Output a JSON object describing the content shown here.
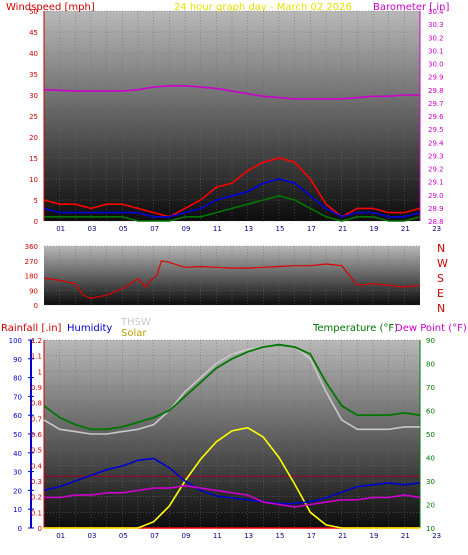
{
  "titles": {
    "windspeed": "Windspeed [mph]",
    "center": "24 hour graph day - March 02 2026",
    "barometer": "Barometer [.in]",
    "rainfall": "Rainfall [.in]",
    "humidity": "Humidity",
    "thsw": "THSW",
    "solar": "Solar",
    "temperature": "Temperature (°F)",
    "dewpoint": "Dew Point (°F)"
  },
  "colors": {
    "windspeed": "#cc0000",
    "center": "#e8e000",
    "barometer": "#cc00cc",
    "rainfall": "#cc0000",
    "humidity": "#0000cc",
    "thsw": "#c8c8c8",
    "solar": "#b8a000",
    "temperature": "#007700",
    "dewpoint": "#cc00cc",
    "wind_gust": "#ff0000",
    "wind_avg": "#0000dd",
    "wind_low": "#007700",
    "wind_dir": "#dd0000",
    "solar_line": "#ffff00"
  },
  "chart_data": [
    {
      "type": "line",
      "x_tick_labels": [
        "01",
        "03",
        "05",
        "07",
        "09",
        "11",
        "13",
        "15",
        "17",
        "21",
        "19",
        "21",
        "23"
      ],
      "y_left": {
        "label": "Windspeed [mph]",
        "ticks": [
          0,
          5,
          10,
          15,
          20,
          25,
          30,
          35,
          40,
          45,
          50
        ],
        "ylim": [
          0,
          50
        ]
      },
      "y_right": {
        "label": "Barometer [.in]",
        "ticks": [
          28.8,
          28.9,
          29.0,
          29.1,
          29.2,
          29.3,
          29.4,
          29.5,
          29.6,
          29.7,
          29.8,
          29.9,
          30.0,
          30.1,
          30.2,
          30.3,
          30.4
        ],
        "ylim": [
          28.8,
          30.4
        ]
      },
      "series": [
        {
          "name": "Barometer",
          "axis": "right",
          "x": [
            0,
            2,
            4,
            5,
            6,
            7,
            8,
            9,
            10,
            11,
            12,
            13,
            14,
            15,
            16,
            17,
            18,
            19,
            20,
            21,
            22,
            23,
            24
          ],
          "values": [
            29.8,
            29.79,
            29.79,
            29.79,
            29.8,
            29.82,
            29.83,
            29.83,
            29.82,
            29.81,
            29.79,
            29.77,
            29.75,
            29.74,
            29.73,
            29.73,
            29.73,
            29.73,
            29.74,
            29.75,
            29.75,
            29.76,
            29.76
          ]
        },
        {
          "axis": "left",
          "x": [
            0,
            1,
            2,
            3,
            4,
            5,
            6,
            7,
            8,
            9,
            10,
            11,
            12,
            13,
            14,
            15,
            16,
            17,
            18,
            19,
            20,
            21,
            22,
            23,
            24
          ],
          "values": [
            5,
            4,
            4,
            3,
            4,
            4,
            3,
            2,
            1,
            3,
            5,
            8,
            9,
            12,
            14,
            15,
            14,
            10,
            4,
            1,
            3,
            3,
            2,
            2,
            3
          ]
        },
        {
          "axis": "left",
          "x": [
            0,
            1,
            2,
            3,
            4,
            5,
            6,
            7,
            8,
            9,
            10,
            11,
            12,
            13,
            14,
            15,
            16,
            17,
            18,
            19,
            20,
            21,
            22,
            23,
            24
          ],
          "values": [
            3,
            2,
            2,
            2,
            2,
            2,
            2,
            1,
            1,
            2,
            3,
            5,
            6,
            7,
            9,
            10,
            9,
            6,
            3,
            1,
            2,
            2,
            1,
            1,
            2
          ]
        },
        {
          "axis": "left",
          "x": [
            0,
            1,
            2,
            3,
            4,
            5,
            6,
            7,
            8,
            9,
            10,
            11,
            12,
            13,
            14,
            15,
            16,
            17,
            18,
            19,
            20,
            21,
            22,
            23,
            24
          ],
          "values": [
            1,
            1,
            1,
            1,
            1,
            1,
            0,
            0,
            0,
            1,
            1,
            2,
            3,
            4,
            5,
            6,
            5,
            3,
            1,
            0,
            1,
            1,
            0,
            0,
            1
          ]
        }
      ]
    },
    {
      "type": "line",
      "x_tick_labels": [],
      "y_left": {
        "ticks": [
          0,
          90,
          180,
          270,
          360
        ],
        "ylim": [
          0,
          360
        ]
      },
      "y_right_labels": [
        "N",
        "W",
        "S",
        "E",
        "N"
      ],
      "series": [
        {
          "name": "Wind Direction",
          "x": [
            0,
            1,
            2,
            2.5,
            3,
            4,
            5,
            5.5,
            6,
            6.5,
            6.8,
            7.2,
            7.5,
            8,
            9,
            10,
            11,
            12,
            13,
            14,
            15,
            16,
            17,
            18,
            19,
            20,
            21,
            22,
            23,
            24
          ],
          "values": [
            165,
            150,
            130,
            60,
            40,
            60,
            100,
            130,
            160,
            110,
            150,
            180,
            270,
            260,
            230,
            235,
            230,
            225,
            225,
            230,
            235,
            240,
            240,
            250,
            240,
            120,
            130,
            120,
            110,
            120
          ]
        }
      ]
    },
    {
      "type": "line",
      "x_tick_labels": [
        "01",
        "03",
        "05",
        "07",
        "09",
        "11",
        "13",
        "15",
        "17",
        "21",
        "19",
        "21",
        "23"
      ],
      "y_left_rain": {
        "label": "Rainfall [.in]",
        "ticks": [
          0,
          0.1,
          0.2,
          0.3,
          0.4,
          0.5,
          0.6,
          0.7,
          0.8,
          0.9,
          1.0,
          1.1,
          1.2
        ],
        "ylim": [
          0,
          1.2
        ]
      },
      "y_left_humidity": {
        "label": "Humidity",
        "ticks": [
          0,
          10,
          20,
          30,
          40,
          50,
          60,
          70,
          80,
          90,
          100
        ],
        "ylim": [
          0,
          100
        ]
      },
      "y_right": {
        "label": "Temperature (°F)",
        "ticks": [
          10,
          20,
          30,
          40,
          50,
          60,
          70,
          80,
          90
        ],
        "ylim": [
          10,
          90
        ]
      },
      "series": [
        {
          "name": "Temperature",
          "axis": "right",
          "x": [
            0,
            1,
            2,
            3,
            4,
            5,
            6,
            7,
            8,
            9,
            10,
            11,
            12,
            13,
            14,
            15,
            16,
            17,
            18,
            19,
            20,
            21,
            22,
            23,
            24
          ],
          "values": [
            62,
            57,
            54,
            52,
            52,
            53,
            55,
            57,
            60,
            66,
            72,
            78,
            82,
            85,
            87,
            88,
            87,
            84,
            72,
            62,
            58,
            58,
            58,
            59,
            58
          ]
        },
        {
          "name": "THSW",
          "axis": "right",
          "x": [
            0,
            1,
            2,
            3,
            4,
            5,
            6,
            7,
            8,
            9,
            10,
            11,
            12,
            13,
            14,
            15,
            16,
            17,
            18,
            19,
            20,
            21,
            22,
            23,
            24
          ],
          "values": [
            56,
            52,
            51,
            50,
            50,
            51,
            52,
            54,
            60,
            68,
            74,
            80,
            84,
            86,
            87,
            88,
            87,
            82,
            68,
            56,
            52,
            52,
            52,
            53,
            53
          ]
        },
        {
          "name": "Dew Point",
          "axis": "right",
          "x": [
            0,
            1,
            2,
            3,
            4,
            5,
            6,
            7,
            8,
            9,
            10,
            11,
            12,
            13,
            14,
            15,
            16,
            17,
            18,
            19,
            20,
            21,
            22,
            23,
            24
          ],
          "values": [
            23,
            23,
            24,
            24,
            25,
            25,
            26,
            27,
            27,
            28,
            27,
            26,
            25,
            24,
            21,
            20,
            19,
            20,
            21,
            22,
            22,
            23,
            23,
            24,
            23
          ]
        },
        {
          "name": "Humidity",
          "axis": "humidity",
          "x": [
            0,
            1,
            2,
            3,
            4,
            5,
            6,
            7,
            8,
            9,
            10,
            11,
            12,
            13,
            14,
            15,
            16,
            17,
            18,
            19,
            20,
            21,
            22,
            23,
            24
          ],
          "values": [
            20,
            22,
            25,
            28,
            31,
            33,
            36,
            37,
            32,
            25,
            20,
            17,
            16,
            15,
            14,
            13,
            13,
            14,
            16,
            19,
            22,
            23,
            24,
            23,
            24
          ]
        },
        {
          "name": "Solar",
          "axis": "rain",
          "x": [
            0,
            6,
            7,
            8,
            9,
            10,
            11,
            12,
            13,
            14,
            15,
            16,
            17,
            18,
            19,
            20,
            24
          ],
          "values": [
            0,
            0,
            0.04,
            0.14,
            0.3,
            0.44,
            0.55,
            0.62,
            0.64,
            0.58,
            0.45,
            0.28,
            0.1,
            0.02,
            0,
            0,
            0
          ]
        },
        {
          "name": "Rainfall",
          "axis": "rain",
          "x": [
            0,
            24
          ],
          "values": [
            0,
            0
          ]
        }
      ]
    }
  ]
}
